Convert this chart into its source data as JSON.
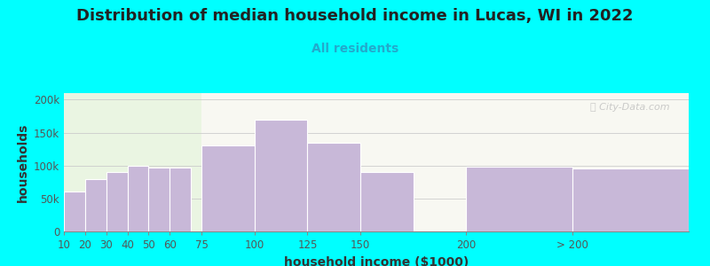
{
  "title": "Distribution of median household income in Lucas, WI in 2022",
  "subtitle": "All residents",
  "xlabel": "household income ($1000)",
  "ylabel": "households",
  "background_color": "#00FFFF",
  "bar_color": "#c8b8d8",
  "bar_edge_color": "#ffffff",
  "watermark": "Ⓜ City-Data.com",
  "bar_lefts": [
    10,
    20,
    30,
    40,
    50,
    60,
    75,
    100,
    125,
    150,
    200,
    250
  ],
  "bar_widths": [
    10,
    10,
    10,
    10,
    10,
    10,
    25,
    25,
    25,
    25,
    50,
    55
  ],
  "values": [
    60000,
    80000,
    90000,
    100000,
    97000,
    97000,
    130000,
    170000,
    135000,
    90000,
    98000,
    95000
  ],
  "ylim": [
    0,
    210000
  ],
  "xlim": [
    10,
    305
  ],
  "yticks": [
    0,
    50000,
    100000,
    150000,
    200000
  ],
  "ytick_labels": [
    "0",
    "50k",
    "100k",
    "150k",
    "200k"
  ],
  "xtick_positions": [
    10,
    20,
    30,
    40,
    50,
    60,
    75,
    100,
    125,
    150,
    200,
    250
  ],
  "xtick_labels": [
    "10",
    "20",
    "30",
    "40",
    "50",
    "60",
    "75",
    "100",
    "125",
    "150",
    "200",
    "> 200"
  ],
  "bg_left_color": "#eaf5e2",
  "bg_right_color": "#f8f8f2",
  "bg_split_x": 75,
  "title_fontsize": 13,
  "subtitle_fontsize": 10,
  "axis_label_fontsize": 10,
  "tick_fontsize": 8.5
}
